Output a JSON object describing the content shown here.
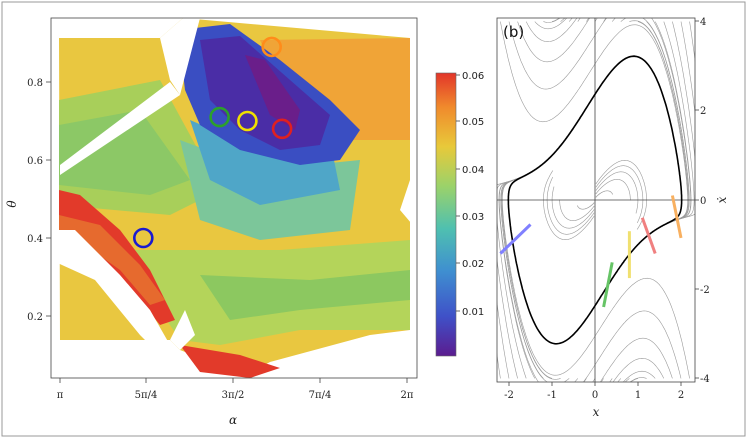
{
  "chart_data": [
    {
      "type": "heatmap",
      "panel_label": "",
      "xlabel": "α",
      "ylabel": "θ",
      "x_ticks": [
        "π",
        "5π/4",
        "3π/2",
        "7π/4",
        "2π"
      ],
      "y_ticks": [
        "0.2",
        "0.4",
        "0.6",
        "0.8"
      ],
      "colorbar": {
        "ticks": [
          "0.06",
          "0.05",
          "0.04",
          "0.03",
          "0.02",
          "0.01"
        ],
        "range": [
          0.0,
          0.06
        ],
        "colors": [
          "#5b1c8f",
          "#3f51c8",
          "#3f8fd0",
          "#4fc0b0",
          "#9bd26a",
          "#e8c93a",
          "#f08a2c",
          "#e2352a"
        ]
      },
      "markers": [
        {
          "color": "#ff8c1a",
          "alpha": 1.61,
          "theta": 0.89
        },
        {
          "color": "#2ca02c",
          "alpha": 1.46,
          "theta": 0.71
        },
        {
          "color": "#f0e000",
          "alpha": 1.54,
          "theta": 0.7
        },
        {
          "color": "#e02020",
          "alpha": 1.64,
          "theta": 0.68
        },
        {
          "color": "#1a1ad0",
          "alpha": 1.24,
          "theta": 0.4
        }
      ]
    },
    {
      "type": "line",
      "panel_label": "(b)",
      "xlabel": "x",
      "ylabel": "ẋ",
      "x_ticks": [
        "-2",
        "-1",
        "0",
        "1",
        "2"
      ],
      "y_ticks": [
        "4",
        "2",
        "0",
        "-2",
        "-4"
      ],
      "xlim": [
        -2.3,
        2.3
      ],
      "ylim": [
        -4.1,
        4.1
      ],
      "limit_cycle": "black",
      "segments": [
        {
          "color": "#8080ff",
          "from": [
            -2.2,
            -1.2
          ],
          "to": [
            -1.5,
            -0.55
          ]
        },
        {
          "color": "#66c466",
          "from": [
            0.2,
            -2.4
          ],
          "to": [
            0.4,
            -1.4
          ]
        },
        {
          "color": "#f0e070",
          "from": [
            0.8,
            -1.75
          ],
          "to": [
            0.8,
            -0.7
          ]
        },
        {
          "color": "#f08080",
          "from": [
            1.1,
            -0.4
          ],
          "to": [
            1.4,
            -1.2
          ]
        },
        {
          "color": "#f8b060",
          "from": [
            1.8,
            0.1
          ],
          "to": [
            2.0,
            -0.85
          ]
        }
      ]
    }
  ]
}
